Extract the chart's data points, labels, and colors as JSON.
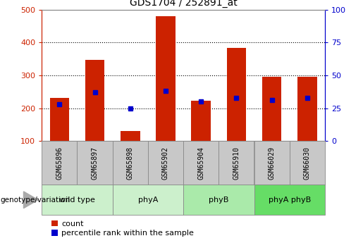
{
  "title": "GDS1704 / 252891_at",
  "samples": [
    "GSM65896",
    "GSM65897",
    "GSM65898",
    "GSM65902",
    "GSM65904",
    "GSM65910",
    "GSM66029",
    "GSM66030"
  ],
  "counts": [
    232,
    348,
    130,
    480,
    222,
    383,
    295,
    295
  ],
  "percentile_ranks": [
    28,
    37,
    25,
    38,
    30,
    33,
    31,
    33
  ],
  "groups": [
    {
      "label": "wild type",
      "indices": [
        0,
        1
      ],
      "color": "#ccf0cc"
    },
    {
      "label": "phyA",
      "indices": [
        2,
        3
      ],
      "color": "#ccf0cc"
    },
    {
      "label": "phyB",
      "indices": [
        4,
        5
      ],
      "color": "#aaeaaa"
    },
    {
      "label": "phyA phyB",
      "indices": [
        6,
        7
      ],
      "color": "#66dd66"
    }
  ],
  "ylim_left": [
    100,
    500
  ],
  "ylim_right": [
    0,
    100
  ],
  "yticks_left": [
    100,
    200,
    300,
    400,
    500
  ],
  "yticks_right": [
    0,
    25,
    50,
    75,
    100
  ],
  "bar_color": "#cc2200",
  "dot_color": "#0000cc",
  "bar_width": 0.55,
  "left_axis_color": "#cc2200",
  "right_axis_color": "#0000cc",
  "legend_count_label": "count",
  "legend_percentile_label": "percentile rank within the sample",
  "genotype_label": "genotype/variation",
  "grid_lines": [
    200,
    300,
    400
  ],
  "sample_box_color": "#c8c8c8",
  "sample_box_edge": "#888888",
  "group_box_edge": "#888888"
}
